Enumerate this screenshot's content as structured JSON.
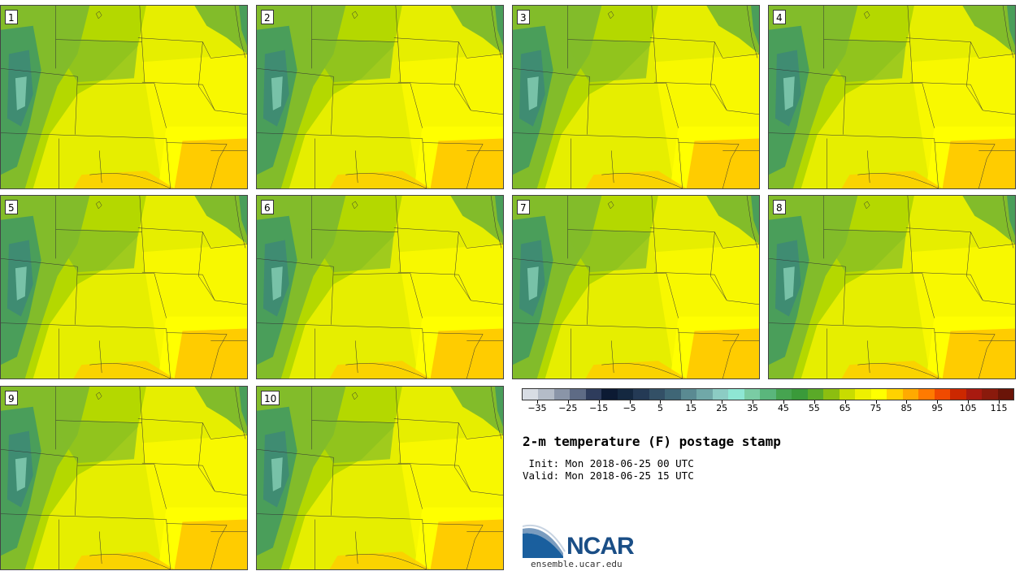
{
  "panels": [
    {
      "label": "1"
    },
    {
      "label": "2"
    },
    {
      "label": "3"
    },
    {
      "label": "4"
    },
    {
      "label": "5"
    },
    {
      "label": "6"
    },
    {
      "label": "7"
    },
    {
      "label": "8"
    },
    {
      "label": "9"
    },
    {
      "label": "10"
    }
  ],
  "colorbar": {
    "colors": [
      "#d8dde4",
      "#b4bcc8",
      "#8a95a8",
      "#5e6b85",
      "#2e3c5c",
      "#0c1a33",
      "#142840",
      "#243a55",
      "#335066",
      "#3f6676",
      "#5a8a92",
      "#70a8a8",
      "#8cccc4",
      "#8ee6d4",
      "#7acca4",
      "#5ab67c",
      "#46a450",
      "#3a9a3a",
      "#5aaa28",
      "#8cbe10",
      "#c8dc00",
      "#eef000",
      "#ffff00",
      "#ffd200",
      "#ffaa00",
      "#ff7a00",
      "#f04a00",
      "#cc2800",
      "#a81a10",
      "#8a1a0c",
      "#6a1408"
    ],
    "ticks": [
      "−35",
      "−25",
      "−15",
      "−5",
      "5",
      "15",
      "25",
      "35",
      "45",
      "55",
      "65",
      "75",
      "85",
      "95",
      "105",
      "115"
    ],
    "range": [
      -40,
      120
    ]
  },
  "title": "2-m temperature (F) postage stamp",
  "init_line": " Init: Mon 2018-06-25 00 UTC",
  "valid_line": "Valid: Mon 2018-06-25 15 UTC",
  "logo": {
    "name": "NCAR",
    "url": "ensemble.ucar.edu"
  }
}
